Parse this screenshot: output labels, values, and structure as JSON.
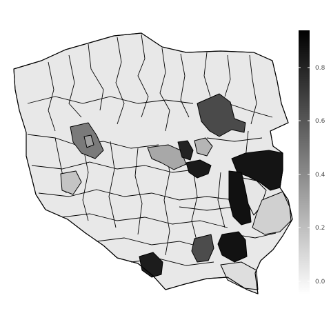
{
  "map": {
    "country": "Poland",
    "projection": "simple outline, district-level choropleth",
    "base_fill": "#e8e8e8",
    "border_color": "#000000",
    "colorbar": {
      "scale": "grayscale",
      "min": 0,
      "max": 0.9,
      "color_low": "#ffffff",
      "color_high": "#000000",
      "tick_labels": [
        "0.0",
        "0.2",
        "0.4",
        "0.6",
        "0.8"
      ],
      "tick_values": [
        0.0,
        0.2,
        0.4,
        0.6,
        0.8
      ]
    },
    "highlighted_regions": [
      {
        "id": "north-east-central",
        "value": 0.7
      },
      {
        "id": "west-central",
        "value": 0.5
      },
      {
        "id": "central-a",
        "value": 0.35
      },
      {
        "id": "central-b",
        "value": 0.85
      },
      {
        "id": "central-c",
        "value": 0.9
      },
      {
        "id": "central-d",
        "value": 0.9
      },
      {
        "id": "east-upper",
        "value": 0.9
      },
      {
        "id": "east-middle",
        "value": 0.9
      },
      {
        "id": "east-lower",
        "value": 0.05
      },
      {
        "id": "south-east-a",
        "value": 0.2
      },
      {
        "id": "south-east-b",
        "value": 0.9
      },
      {
        "id": "south-central",
        "value": 0.75
      },
      {
        "id": "south-west",
        "value": 0.85
      },
      {
        "id": "west-small",
        "value": 0.3
      },
      {
        "id": "south-east-c",
        "value": 0.12
      }
    ]
  }
}
